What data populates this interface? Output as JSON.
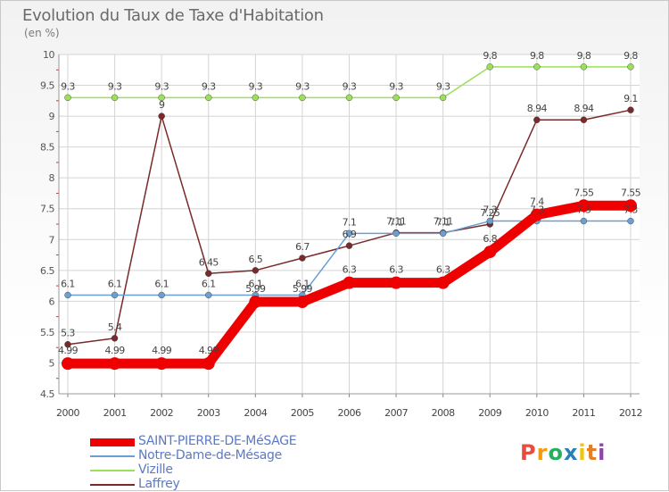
{
  "title": "Evolution du Taux de Taxe d'Habitation",
  "unit": "(en %)",
  "brand": "Proxiti",
  "brand_colors": [
    "#e74c3c",
    "#f39c12",
    "#27ae60",
    "#2980b9",
    "#f1c40f",
    "#e67e22",
    "#8e44ad"
  ],
  "chart_data": {
    "type": "line",
    "x": [
      "2000",
      "2001",
      "2002",
      "2003",
      "2004",
      "2005",
      "2006",
      "2007",
      "2008",
      "2009",
      "2010",
      "2011",
      "2012"
    ],
    "ylim": [
      4.5,
      10
    ],
    "yticks": [
      "4.5",
      "5",
      "5.5",
      "6",
      "6.5",
      "7",
      "7.5",
      "8",
      "8.5",
      "9",
      "9.5",
      "10"
    ],
    "grid": true,
    "legend_position": "bottom",
    "series": [
      {
        "name": "SAINT-PIERRE-DE-MéSAGE",
        "color": "#ee0000",
        "thick": true,
        "values": [
          4.99,
          4.99,
          4.99,
          4.99,
          5.99,
          5.99,
          6.3,
          6.3,
          6.3,
          6.8,
          7.4,
          7.55,
          7.55
        ],
        "labels": [
          "4.99",
          "4.99",
          "4.99",
          "4.99",
          "5.99",
          "5.99",
          "6.3",
          "6.3",
          "6.3",
          "6.8",
          "7.4",
          "7.55",
          "7.55"
        ]
      },
      {
        "name": "Notre-Dame-de-Mésage",
        "color": "#6a9fd0",
        "values": [
          6.1,
          6.1,
          6.1,
          6.1,
          6.1,
          6.1,
          7.1,
          7.1,
          7.1,
          7.3,
          7.3,
          7.3,
          7.3
        ],
        "labels": [
          "6.1",
          "6.1",
          "6.1",
          "6.1",
          "6.1",
          "6.1",
          "7.1",
          "7.1",
          "7.1",
          "7.3",
          "7.3",
          "7.3",
          "7.3"
        ]
      },
      {
        "name": "Vizille",
        "color": "#9ae05a",
        "values": [
          9.3,
          9.3,
          9.3,
          9.3,
          9.3,
          9.3,
          9.3,
          9.3,
          9.3,
          9.8,
          9.8,
          9.8,
          9.8
        ],
        "labels": [
          "9.3",
          "9.3",
          "9.3",
          "9.3",
          "9.3",
          "9.3",
          "9.3",
          "9.3",
          "9.3",
          "9.8",
          "9.8",
          "9.8",
          "9.8"
        ]
      },
      {
        "name": "Laffrey",
        "color": "#7a2a2a",
        "values": [
          5.3,
          5.4,
          9,
          6.45,
          6.5,
          6.7,
          6.9,
          7.11,
          7.11,
          7.25,
          8.94,
          8.94,
          9.1
        ],
        "labels": [
          "5.3",
          "5.4",
          "9",
          "6.45",
          "6.5",
          "6.7",
          "6.9",
          "7.11",
          "7.11",
          "7.25",
          "8.94",
          "8.94",
          "9.1"
        ]
      }
    ]
  }
}
